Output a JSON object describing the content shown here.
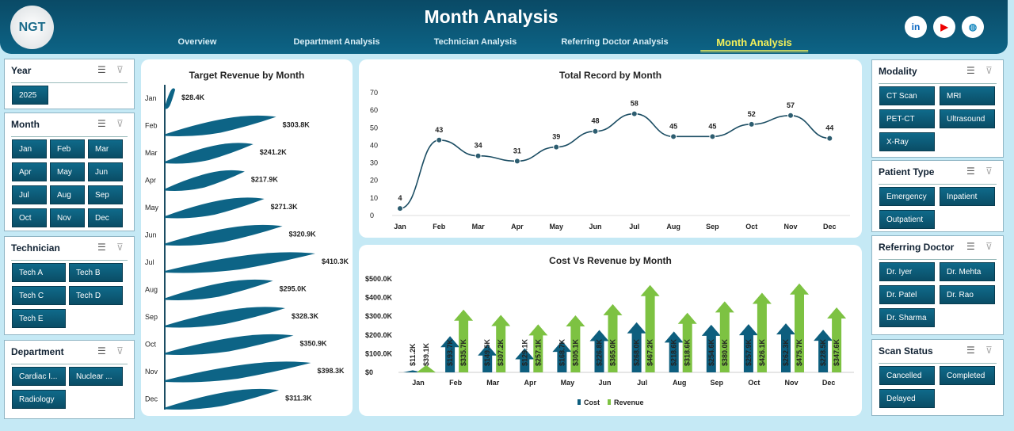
{
  "header": {
    "title": "Month Analysis",
    "logo": "NGT",
    "nav": [
      "Overview",
      "Department Analysis",
      "Technician Analysis",
      "Referring Doctor Analysis",
      "Month Analysis"
    ],
    "active": "Month Analysis",
    "social": [
      "linkedin-icon",
      "youtube-icon",
      "globe-icon"
    ]
  },
  "slicers": {
    "year": {
      "title": "Year",
      "items": [
        "2025"
      ]
    },
    "month": {
      "title": "Month",
      "items": [
        "Jan",
        "Feb",
        "Mar",
        "Apr",
        "May",
        "Jun",
        "Jul",
        "Aug",
        "Sep",
        "Oct",
        "Nov",
        "Dec"
      ]
    },
    "technician": {
      "title": "Technician",
      "items": [
        "Tech A",
        "Tech B",
        "Tech C",
        "Tech D",
        "Tech E"
      ]
    },
    "department": {
      "title": "Department",
      "items": [
        "Cardiac I...",
        "Nuclear ...",
        "Radiology"
      ]
    },
    "modality": {
      "title": "Modality",
      "items": [
        "CT Scan",
        "MRI",
        "PET-CT",
        "Ultrasound",
        "X-Ray"
      ]
    },
    "patient_type": {
      "title": "Patient Type",
      "items": [
        "Emergency",
        "Inpatient",
        "Outpatient"
      ]
    },
    "referring_doctor": {
      "title": "Referring Doctor",
      "items": [
        "Dr. Iyer",
        "Dr. Mehta",
        "Dr. Patel",
        "Dr. Rao",
        "Dr. Sharma"
      ]
    },
    "scan_status": {
      "title": "Scan Status",
      "items": [
        "Cancelled",
        "Completed",
        "Delayed"
      ]
    }
  },
  "chart_data": [
    {
      "type": "bar",
      "title": "Target Revenue by Month",
      "orientation": "horizontal",
      "categories": [
        "Jan",
        "Feb",
        "Mar",
        "Apr",
        "May",
        "Jun",
        "Jul",
        "Aug",
        "Sep",
        "Oct",
        "Nov",
        "Dec"
      ],
      "values": [
        28.4,
        303.8,
        241.2,
        217.9,
        271.3,
        320.9,
        410.3,
        295.0,
        328.3,
        350.9,
        398.3,
        311.3
      ],
      "labels": [
        "$28.4K",
        "$303.8K",
        "$241.2K",
        "$217.9K",
        "$271.3K",
        "$320.9K",
        "$410.3K",
        "$295.0K",
        "$328.3K",
        "$350.9K",
        "$398.3K",
        "$311.3K"
      ],
      "color": "#0d6486"
    },
    {
      "type": "line",
      "title": "Total Record by Month",
      "categories": [
        "Jan",
        "Feb",
        "Mar",
        "Apr",
        "May",
        "Jun",
        "Jul",
        "Aug",
        "Sep",
        "Oct",
        "Nov",
        "Dec"
      ],
      "values": [
        4,
        43,
        34,
        31,
        39,
        48,
        58,
        45,
        45,
        52,
        57,
        44
      ],
      "ylim": [
        0,
        70
      ],
      "yticks": [
        "0",
        "10",
        "20",
        "30",
        "40",
        "50",
        "60",
        "70"
      ],
      "color": "#1b4d63"
    },
    {
      "type": "bar",
      "title": "Cost Vs Revenue by Month",
      "categories": [
        "Jan",
        "Feb",
        "Mar",
        "Apr",
        "May",
        "Jun",
        "Jul",
        "Aug",
        "Sep",
        "Oct",
        "Nov",
        "Dec"
      ],
      "ylim": [
        0,
        500
      ],
      "yticks": [
        "$0",
        "$100.0K",
        "$200.0K",
        "$300.0K",
        "$400.0K",
        "$500.0K"
      ],
      "legend": "bottom",
      "series": [
        {
          "name": "Cost",
          "color": "#0d5e7e",
          "values": [
            11.2,
            193.7,
            149.5,
            129.1,
            168.7,
            226.8,
            268.0,
            218.6,
            254.6,
            257.9,
            262.3,
            228.5
          ],
          "labels": [
            "$11.2K",
            "$193.7K",
            "$149.5K",
            "$129.1K",
            "$168.7K",
            "$226.8K",
            "$268.0K",
            "$218.6K",
            "$254.6K",
            "$257.9K",
            "$262.3K",
            "$228.5K"
          ]
        },
        {
          "name": "Revenue",
          "color": "#7dc242",
          "values": [
            39.1,
            335.7,
            307.2,
            257.1,
            305.1,
            365.0,
            467.2,
            318.6,
            380.0,
            426.1,
            475.7,
            347.6
          ],
          "labels": [
            "$39.1K",
            "$335.7K",
            "$307.2K",
            "$257.1K",
            "$305.1K",
            "$365.0K",
            "$467.2K",
            "$318.6K",
            "$380.0K",
            "$426.1K",
            "$475.7K",
            "$347.6K"
          ]
        }
      ]
    }
  ]
}
